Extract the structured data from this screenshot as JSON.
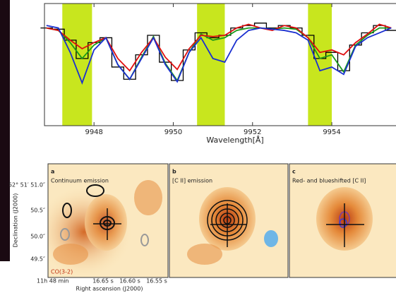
{
  "chart_data": {
    "type": "line",
    "x_label": "Wavelength[Å]",
    "x": [
      9946.8,
      9947.1,
      9947.4,
      9947.7,
      9948.0,
      9948.3,
      9948.6,
      9948.9,
      9949.2,
      9949.5,
      9949.8,
      9950.1,
      9950.4,
      9950.7,
      9951.0,
      9951.3,
      9951.6,
      9951.9,
      9952.2,
      9952.5,
      9952.8,
      9953.1,
      9953.4,
      9953.7,
      9954.0,
      9954.3,
      9954.6,
      9954.9,
      9955.2,
      9955.5
    ],
    "series": [
      {
        "color": "#000000",
        "style": "step",
        "values": [
          0.8,
          0.79,
          0.7,
          0.55,
          0.68,
          0.72,
          0.48,
          0.38,
          0.58,
          0.74,
          0.52,
          0.37,
          0.62,
          0.76,
          0.72,
          0.74,
          0.8,
          0.82,
          0.84,
          0.8,
          0.82,
          0.8,
          0.74,
          0.55,
          0.6,
          0.45,
          0.66,
          0.76,
          0.82,
          0.78
        ]
      },
      {
        "color": "#1a9a1a",
        "style": "line",
        "values": [
          0.8,
          0.78,
          0.68,
          0.55,
          0.66,
          0.72,
          0.5,
          0.38,
          0.56,
          0.73,
          0.51,
          0.37,
          0.6,
          0.75,
          0.7,
          0.72,
          0.78,
          0.8,
          0.8,
          0.79,
          0.8,
          0.79,
          0.72,
          0.55,
          0.58,
          0.44,
          0.66,
          0.74,
          0.8,
          0.8
        ]
      },
      {
        "color": "#e01010",
        "style": "line",
        "values": [
          0.8,
          0.78,
          0.7,
          0.63,
          0.68,
          0.72,
          0.55,
          0.45,
          0.6,
          0.72,
          0.56,
          0.46,
          0.63,
          0.74,
          0.73,
          0.74,
          0.8,
          0.83,
          0.8,
          0.78,
          0.82,
          0.8,
          0.72,
          0.6,
          0.62,
          0.58,
          0.68,
          0.75,
          0.83,
          0.8
        ]
      },
      {
        "color": "#1a2fd0",
        "style": "line",
        "values": [
          0.82,
          0.8,
          0.6,
          0.35,
          0.62,
          0.72,
          0.5,
          0.38,
          0.55,
          0.72,
          0.5,
          0.36,
          0.6,
          0.72,
          0.55,
          0.52,
          0.7,
          0.78,
          0.8,
          0.79,
          0.78,
          0.76,
          0.7,
          0.45,
          0.48,
          0.42,
          0.65,
          0.72,
          0.76,
          0.8
        ]
      }
    ],
    "spans": [
      [
        9947.2,
        9947.95
      ],
      [
        9950.6,
        9951.3
      ],
      [
        9953.4,
        9954.0
      ]
    ],
    "span_color": "#c8e61e",
    "xlim": [
      9946.75,
      9955.62
    ],
    "ylim": [
      0,
      1
    ],
    "xticks": [
      9948,
      9950,
      9952,
      9954
    ]
  },
  "maps": {
    "panels": [
      {
        "letter": "a",
        "title": "Continuum emission",
        "note": "CO(3-2)"
      },
      {
        "letter": "b",
        "title": "[C II] emission"
      },
      {
        "letter": "c",
        "title": "Red- and blueshifted [C II]"
      }
    ],
    "dec_ticks": [
      "52° 51′ 51.0″",
      "50.5″",
      "50.0″",
      "49.5″"
    ],
    "ra_ticks": [
      "11h 48 min",
      "16.65 s",
      "16.60 s",
      "16.55 s"
    ],
    "x_label": "Right ascension (J2000)",
    "y_label": "Declination (J2000)"
  }
}
